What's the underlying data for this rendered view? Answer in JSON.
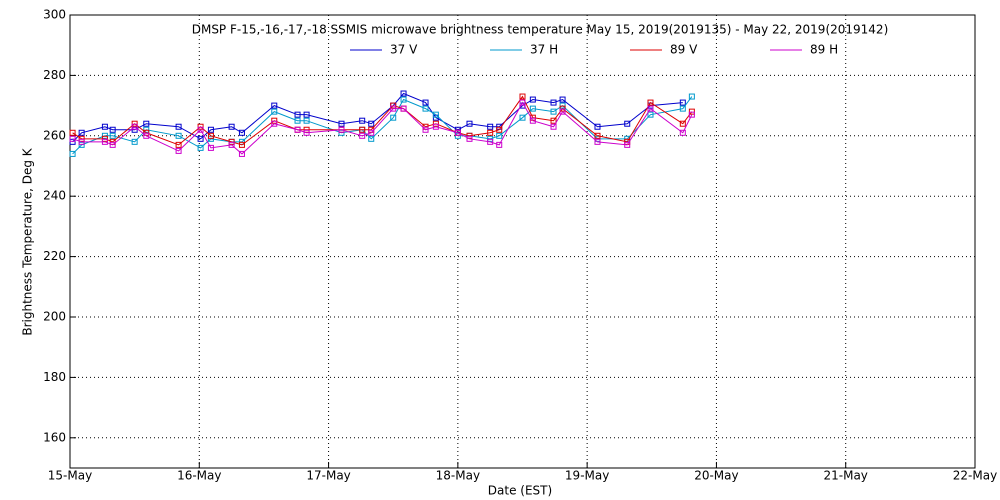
{
  "chart_data": {
    "type": "line",
    "title": "DMSP F-15,-16,-17,-18 SSMIS microwave brightness temperature May 15, 2019(2019135) - May 22, 2019(2019142)",
    "x_label": "Date (EST)",
    "y_label": "Brightness Temperature, Deg K",
    "x": [
      0.02,
      0.09,
      0.27,
      0.33,
      0.5,
      0.59,
      0.84,
      1.01,
      1.09,
      1.25,
      1.33,
      1.58,
      1.76,
      1.83,
      2.1,
      2.26,
      2.33,
      2.5,
      2.58,
      2.75,
      2.83,
      3.0,
      3.09,
      3.25,
      3.32,
      3.5,
      3.58,
      3.74,
      3.81,
      4.08,
      4.31,
      4.49,
      4.74,
      4.81
    ],
    "series": [
      {
        "name": "37 V",
        "color": "#0000cc",
        "values": [
          258,
          261,
          263,
          262,
          262,
          264,
          263,
          259,
          262,
          263,
          261,
          270,
          267,
          267,
          264,
          265,
          264,
          270,
          274,
          271,
          266,
          262,
          264,
          263,
          263,
          270,
          272,
          271,
          272,
          263,
          264,
          270,
          271,
          null
        ]
      },
      {
        "name": "37 H",
        "color": "#0099cc",
        "values": [
          254,
          257,
          260,
          260,
          258,
          262,
          260,
          256,
          259,
          258,
          258,
          268,
          265,
          265,
          261,
          262,
          259,
          266,
          272,
          269,
          267,
          260,
          260,
          259,
          260,
          266,
          269,
          268,
          270,
          259,
          259,
          267,
          269,
          273
        ]
      },
      {
        "name": "89 V",
        "color": "#dd0000",
        "values": [
          261,
          259,
          259,
          258,
          264,
          261,
          257,
          263,
          260,
          258,
          257,
          265,
          262,
          262,
          262,
          262,
          262,
          270,
          269,
          263,
          264,
          261,
          260,
          261,
          262,
          273,
          266,
          265,
          269,
          260,
          258,
          271,
          264,
          268
        ]
      },
      {
        "name": "89 H",
        "color": "#cc00cc",
        "values": [
          259,
          258,
          258,
          257,
          263,
          260,
          255,
          262,
          256,
          257,
          254,
          264,
          262,
          261,
          262,
          260,
          261,
          269,
          269,
          262,
          263,
          261,
          259,
          258,
          257,
          271,
          265,
          263,
          268,
          258,
          257,
          269,
          261,
          267
        ]
      }
    ],
    "xlim": [
      0,
      7
    ],
    "xticks": [
      {
        "value": 0,
        "label": "15-May"
      },
      {
        "value": 1,
        "label": "16-May"
      },
      {
        "value": 2,
        "label": "17-May"
      },
      {
        "value": 3,
        "label": "18-May"
      },
      {
        "value": 4,
        "label": "19-May"
      },
      {
        "value": 5,
        "label": "20-May"
      },
      {
        "value": 6,
        "label": "21-May"
      },
      {
        "value": 7,
        "label": "22-May"
      }
    ],
    "ylim": [
      150,
      300
    ],
    "yticks": [
      160,
      180,
      200,
      220,
      240,
      260,
      280,
      300
    ],
    "grid": true
  }
}
